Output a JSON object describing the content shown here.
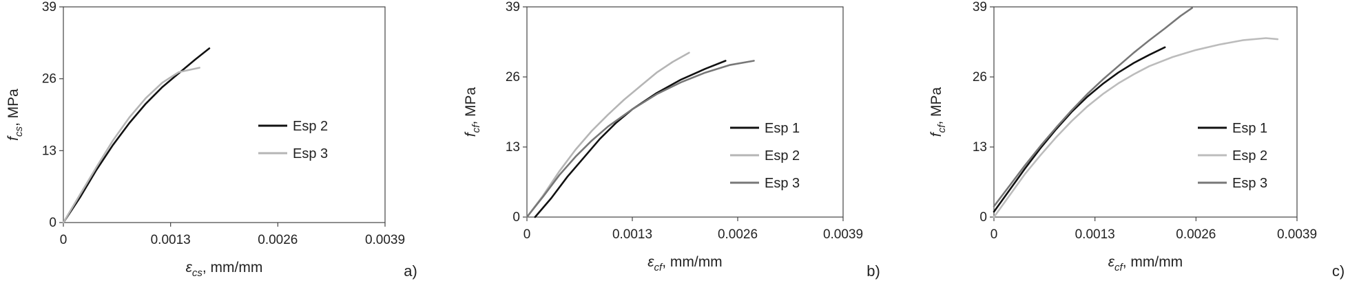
{
  "chart_data": [
    {
      "type": "line",
      "panel_label": "a)",
      "ylabel": "f_cs, MPa",
      "ylabel_main": "f",
      "ylabel_sub": "cs",
      "ylabel_unit": ", MPa",
      "xlabel": "ε_cs, mm/mm",
      "xlabel_main": "ε",
      "xlabel_sub": "cs",
      "xlabel_unit": ", mm/mm",
      "xlim": [
        0,
        0.0039
      ],
      "ylim": [
        0,
        39
      ],
      "xticks": [
        "0",
        "0.0013",
        "0.0026",
        "0.0039"
      ],
      "yticks": [
        "0",
        "13",
        "26",
        "39"
      ],
      "grid": false,
      "legend": "right",
      "series": [
        {
          "name": "Esp 2",
          "color": "#111111",
          "x": [
            0,
            0.0002,
            0.0004,
            0.0006,
            0.0008,
            0.001,
            0.0012,
            0.0014,
            0.0016,
            0.00177
          ],
          "y": [
            0,
            4.5,
            9.5,
            14,
            18,
            21.5,
            24.5,
            27,
            29.5,
            31.5
          ]
        },
        {
          "name": "Esp 3",
          "color": "#b5b5b5",
          "x": [
            0,
            0.0002,
            0.0004,
            0.0006,
            0.0008,
            0.001,
            0.0012,
            0.0014,
            0.00165
          ],
          "y": [
            0,
            5,
            10,
            14.8,
            19,
            22.5,
            25.3,
            27.2,
            28
          ]
        }
      ]
    },
    {
      "type": "line",
      "panel_label": "b)",
      "ylabel": "f_cf, MPa",
      "ylabel_main": "f",
      "ylabel_sub": "cf",
      "ylabel_unit": ", MPa",
      "xlabel": "ε_cf, mm/mm",
      "xlabel_main": "ε",
      "xlabel_sub": "cf",
      "xlabel_unit": ", mm/mm",
      "xlim": [
        0,
        0.0039
      ],
      "ylim": [
        0,
        39
      ],
      "xticks": [
        "0",
        "0.0013",
        "0.0026",
        "0.0039"
      ],
      "yticks": [
        "0",
        "13",
        "26",
        "39"
      ],
      "grid": false,
      "legend": "right",
      "series": [
        {
          "name": "Esp 1",
          "color": "#111111",
          "x": [
            0.0001,
            0.0003,
            0.0005,
            0.0007,
            0.0009,
            0.0011,
            0.0013,
            0.0016,
            0.0019,
            0.0022,
            0.00245
          ],
          "y": [
            0,
            3.5,
            7.5,
            11,
            14.5,
            17.5,
            20,
            23,
            25.5,
            27.5,
            29
          ]
        },
        {
          "name": "Esp 2",
          "color": "#b5b5b5",
          "x": [
            0,
            0.0002,
            0.0004,
            0.0006,
            0.0008,
            0.001,
            0.0012,
            0.0014,
            0.0016,
            0.0018,
            0.002
          ],
          "y": [
            0,
            4,
            8.5,
            12.5,
            16,
            19,
            21.8,
            24.3,
            26.8,
            28.8,
            30.5
          ]
        },
        {
          "name": "Esp 3",
          "color": "#777777",
          "x": [
            0,
            0.0002,
            0.0004,
            0.0006,
            0.0008,
            0.001,
            0.0013,
            0.0016,
            0.0019,
            0.0022,
            0.0025,
            0.0028
          ],
          "y": [
            0,
            3.8,
            7.8,
            11.2,
            14.2,
            16.8,
            20,
            22.8,
            25,
            26.8,
            28.2,
            29
          ]
        }
      ]
    },
    {
      "type": "line",
      "panel_label": "c)",
      "ylabel": "f_cf, MPa",
      "ylabel_main": "f",
      "ylabel_sub": "cf",
      "ylabel_unit": ", MPa",
      "xlabel": "ε_cf, mm/mm",
      "xlabel_main": "ε",
      "xlabel_sub": "cf",
      "xlabel_unit": ", mm/mm",
      "xlim": [
        0,
        0.0039
      ],
      "ylim": [
        0,
        39
      ],
      "xticks": [
        "0",
        "0.0013",
        "0.0026",
        "0.0039"
      ],
      "yticks": [
        "0",
        "13",
        "26",
        "39"
      ],
      "grid": false,
      "legend": "right",
      "series": [
        {
          "name": "Esp 1",
          "color": "#111111",
          "x": [
            0,
            0.0002,
            0.0004,
            0.0006,
            0.0008,
            0.001,
            0.0012,
            0.0014,
            0.0016,
            0.0018,
            0.002,
            0.0022
          ],
          "y": [
            1,
            5,
            9,
            12.8,
            16.3,
            19.5,
            22.3,
            24.7,
            26.8,
            28.6,
            30.1,
            31.5
          ]
        },
        {
          "name": "Esp 2",
          "color": "#bcbcbc",
          "x": [
            0,
            0.0002,
            0.0004,
            0.0006,
            0.0008,
            0.001,
            0.0012,
            0.0014,
            0.0016,
            0.0018,
            0.002,
            0.0023,
            0.0026,
            0.0029,
            0.0032,
            0.0035,
            0.00365
          ],
          "y": [
            0,
            4,
            8,
            11.5,
            14.8,
            17.8,
            20.5,
            22.8,
            24.8,
            26.5,
            28,
            29.7,
            31,
            32,
            32.8,
            33.2,
            33
          ]
        },
        {
          "name": "Esp 3",
          "color": "#777777",
          "x": [
            0,
            0.0002,
            0.0004,
            0.0006,
            0.0008,
            0.001,
            0.0012,
            0.0014,
            0.0016,
            0.0018,
            0.002,
            0.0022,
            0.0024,
            0.00255
          ],
          "y": [
            2,
            5.8,
            9.6,
            13.2,
            16.6,
            19.8,
            22.8,
            25.5,
            28,
            30.5,
            32.8,
            35,
            37.3,
            38.8
          ]
        }
      ]
    }
  ]
}
